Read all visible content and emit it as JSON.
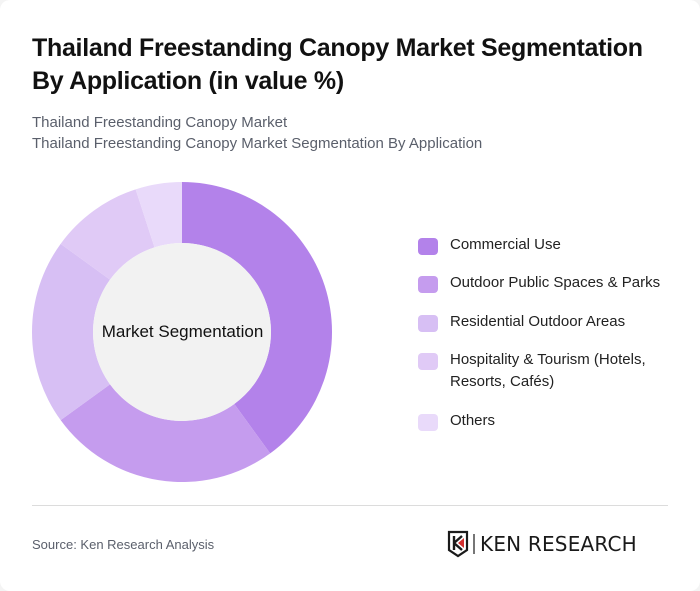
{
  "header": {
    "title": "Thailand Freestanding Canopy Market Segmentation By Application (in value %)",
    "subtitle_line1": "Thailand Freestanding Canopy Market",
    "subtitle_line2": "Thailand Freestanding Canopy Market Segmentation By Application"
  },
  "chart": {
    "center_label": "Market Segmentation"
  },
  "legend": {
    "items": [
      {
        "label": "Commercial Use",
        "color": "#b382ea"
      },
      {
        "label": "Outdoor Public Spaces & Parks",
        "color": "#c59cee"
      },
      {
        "label": "Residential Outdoor Areas",
        "color": "#d7bff4"
      },
      {
        "label": "Hospitality & Tourism (Hotels, Resorts, Cafés)",
        "color": "#e0caf6"
      },
      {
        "label": "Others",
        "color": "#e9dafa"
      }
    ]
  },
  "footer": {
    "source": "Source: Ken Research Analysis",
    "logo_text": "KEN RESEARCH"
  },
  "chart_data": {
    "type": "pie",
    "subtype": "donut",
    "title": "Thailand Freestanding Canopy Market Segmentation By Application (in value %)",
    "subtitle": "Thailand Freestanding Canopy Market Segmentation By Application",
    "center_label": "Market Segmentation",
    "categories": [
      "Commercial Use",
      "Outdoor Public Spaces & Parks",
      "Residential Outdoor Areas",
      "Hospitality & Tourism (Hotels, Resorts, Cafés)",
      "Others"
    ],
    "values": [
      40,
      25,
      20,
      10,
      5
    ],
    "colors": [
      "#b382ea",
      "#c59cee",
      "#d7bff4",
      "#e0caf6",
      "#e9dafa"
    ],
    "unit": "%",
    "legend_position": "right",
    "start_angle": "12 o'clock, clockwise"
  }
}
